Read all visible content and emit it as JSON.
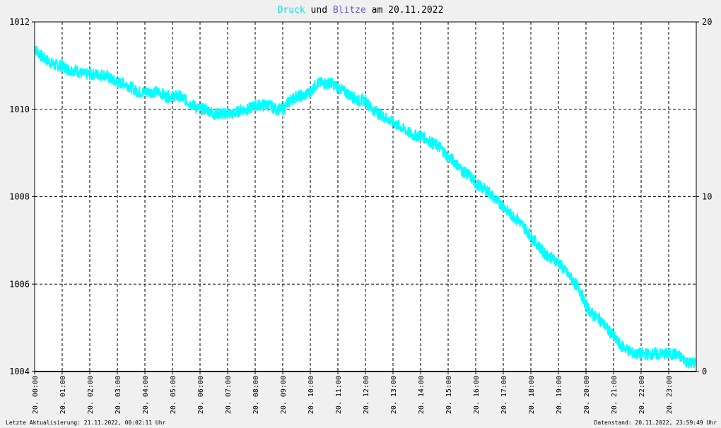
{
  "title": {
    "part1": "Druck",
    "part2": " und ",
    "part3": "Blitze",
    "part4": " am 20.11.2022"
  },
  "colors": {
    "pressure": "#00ffff",
    "lightning": "#6a5acd",
    "background": "#ffffff",
    "title_black": "#000000",
    "baseline": "#000080"
  },
  "footer": {
    "left": "Letzte Aktualisierung: 21.11.2022, 00:02:11 Uhr",
    "right": "Datenstand: 20.11.2022, 23:59:49 Uhr"
  },
  "chart_data": {
    "type": "line",
    "title": "Druck und Blitze am 20.11.2022",
    "x_tick_labels": [
      "20. 00:00",
      "20. 01:00",
      "20. 02:00",
      "20. 03:00",
      "20. 04:00",
      "20. 05:00",
      "20. 06:00",
      "20. 07:00",
      "20. 08:00",
      "20. 09:00",
      "20. 10:00",
      "20. 11:00",
      "20. 12:00",
      "20. 13:00",
      "20. 14:00",
      "20. 15:00",
      "20. 16:00",
      "20. 17:00",
      "20. 18:00",
      "20. 19:00",
      "20. 20:00",
      "20. 21:00",
      "20. 22:00",
      "20. 23:00"
    ],
    "xlim": [
      0,
      24
    ],
    "y_left": {
      "ylim": [
        1004,
        1012
      ],
      "ticks": [
        "1012",
        "1010",
        "1008",
        "1006",
        "1004"
      ]
    },
    "y_right": {
      "ylim": [
        0,
        20
      ],
      "ticks": [
        "20",
        "10",
        "0"
      ]
    },
    "grid": true,
    "series": [
      {
        "name": "Druck",
        "axis": "left",
        "x": [
          0.0,
          0.25,
          0.5,
          0.75,
          1.0,
          1.25,
          1.5,
          1.75,
          2.0,
          2.25,
          2.5,
          2.75,
          3.0,
          3.25,
          3.5,
          3.75,
          4.0,
          4.25,
          4.5,
          4.75,
          5.0,
          5.25,
          5.5,
          5.75,
          6.0,
          6.25,
          6.5,
          6.75,
          7.0,
          7.25,
          7.5,
          7.75,
          8.0,
          8.25,
          8.5,
          8.75,
          9.0,
          9.25,
          9.5,
          9.75,
          10.0,
          10.25,
          10.5,
          10.75,
          11.0,
          11.25,
          11.5,
          11.75,
          12.0,
          12.25,
          12.5,
          12.75,
          13.0,
          13.25,
          13.5,
          13.75,
          14.0,
          14.25,
          14.5,
          14.75,
          15.0,
          15.25,
          15.5,
          15.75,
          16.0,
          16.25,
          16.5,
          16.75,
          17.0,
          17.25,
          17.5,
          17.75,
          18.0,
          18.25,
          18.5,
          18.75,
          19.0,
          19.25,
          19.5,
          19.75,
          20.0,
          20.25,
          20.5,
          20.75,
          21.0,
          21.25,
          21.5,
          21.75,
          22.0,
          22.25,
          22.5,
          22.75,
          23.0,
          23.25,
          23.5,
          23.75,
          23.95
        ],
        "values": [
          1011.4,
          1011.2,
          1011.1,
          1011.0,
          1011.0,
          1010.9,
          1010.9,
          1010.8,
          1010.8,
          1010.8,
          1010.8,
          1010.7,
          1010.6,
          1010.6,
          1010.5,
          1010.4,
          1010.4,
          1010.4,
          1010.4,
          1010.3,
          1010.3,
          1010.3,
          1010.2,
          1010.1,
          1010.0,
          1010.0,
          1009.9,
          1009.9,
          1009.9,
          1009.9,
          1010.0,
          1010.0,
          1010.1,
          1010.1,
          1010.1,
          1010.0,
          1010.0,
          1010.2,
          1010.3,
          1010.3,
          1010.4,
          1010.6,
          1010.6,
          1010.6,
          1010.5,
          1010.4,
          1010.3,
          1010.2,
          1010.2,
          1010.0,
          1009.9,
          1009.8,
          1009.7,
          1009.6,
          1009.5,
          1009.4,
          1009.4,
          1009.3,
          1009.2,
          1009.1,
          1008.9,
          1008.8,
          1008.6,
          1008.5,
          1008.3,
          1008.2,
          1008.1,
          1007.9,
          1007.8,
          1007.6,
          1007.5,
          1007.3,
          1007.1,
          1006.9,
          1006.7,
          1006.6,
          1006.5,
          1006.3,
          1006.1,
          1005.9,
          1005.5,
          1005.3,
          1005.2,
          1005.0,
          1004.8,
          1004.6,
          1004.5,
          1004.4,
          1004.4,
          1004.4,
          1004.4,
          1004.4,
          1004.4,
          1004.4,
          1004.3,
          1004.2,
          1004.2
        ]
      },
      {
        "name": "Blitze",
        "axis": "right",
        "x": [
          0,
          24
        ],
        "values": [
          0,
          0
        ]
      }
    ]
  }
}
